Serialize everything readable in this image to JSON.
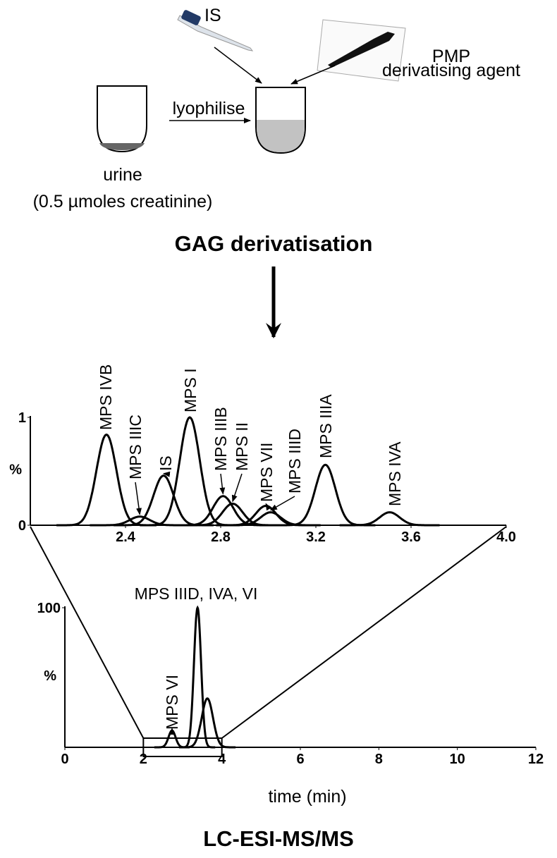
{
  "diagram": {
    "is_label": "IS",
    "pmp_line1": "PMP",
    "pmp_line2": "derivatising agent",
    "lyophilise": "lyophilise",
    "urine": "urine",
    "creatinine": "(0.5 µmoles creatinine)",
    "step1": "GAG derivatisation",
    "step2": "LC-ESI-MS/MS"
  },
  "chart_data": [
    {
      "type": "chromatogram",
      "ylabel": "%",
      "xlim": [
        2.0,
        4.0
      ],
      "ylim": [
        0,
        1
      ],
      "xticks": [
        2.4,
        2.8,
        3.2,
        3.6,
        {
          "value": 4,
          "label": "4.0"
        }
      ],
      "yticks": [
        0,
        1
      ],
      "color": "#000000",
      "peaks": [
        {
          "name": "MPS IVB",
          "x": 2.32,
          "y": 0.84
        },
        {
          "name": "MPS IIIC",
          "x": 2.46,
          "y": 0.08
        },
        {
          "name": "IS",
          "x": 2.56,
          "y": 0.46
        },
        {
          "name": "MPS I",
          "x": 2.67,
          "y": 1.0
        },
        {
          "name": "MPS IIIB",
          "x": 2.81,
          "y": 0.27
        },
        {
          "name": "MPS II",
          "x": 2.85,
          "y": 0.2
        },
        {
          "name": "MPS VII",
          "x": 2.99,
          "y": 0.18
        },
        {
          "name": "MPS IIID",
          "x": 3.01,
          "y": 0.12
        },
        {
          "name": "MPS IIIA",
          "x": 3.24,
          "y": 0.56
        },
        {
          "name": "MPS IVA",
          "x": 3.51,
          "y": 0.12
        }
      ]
    },
    {
      "type": "chromatogram",
      "ylabel": "%",
      "xlabel": "time (min)",
      "xlim": [
        0,
        12
      ],
      "ylim": [
        0,
        100
      ],
      "xticks": [
        0,
        2,
        4,
        6,
        8,
        10,
        12
      ],
      "yticks": [
        100
      ],
      "color": "#000000",
      "zoom": [
        2,
        4
      ],
      "peaks": [
        {
          "name": "MPS VI",
          "x": 2.73,
          "y": 12
        },
        {
          "name": "MPS IIID, IVA, VI",
          "x": 3.38,
          "y": 100
        },
        {
          "x": 3.63,
          "y": 35
        }
      ]
    }
  ]
}
